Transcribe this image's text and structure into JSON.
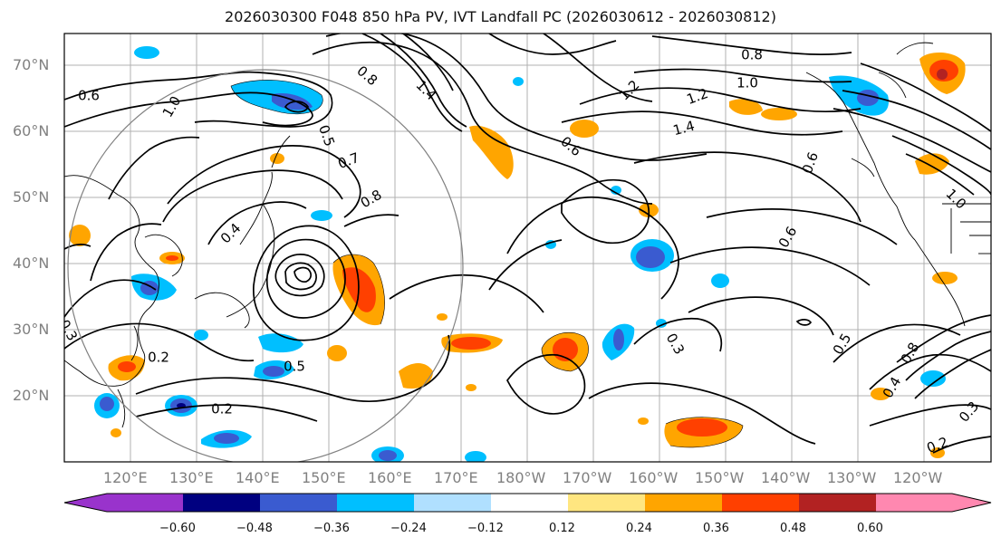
{
  "title": "2026030300 F048 850 hPa PV, IVT Landfall PC (2026030612 - 2026030812)",
  "latitude_labels": [
    "70°N",
    "60°N",
    "50°N",
    "40°N",
    "30°N",
    "20°N"
  ],
  "longitude_labels": [
    "120°E",
    "130°E",
    "140°E",
    "150°E",
    "160°E",
    "170°E",
    "180°W",
    "170°W",
    "160°W",
    "150°W",
    "140°W",
    "130°W",
    "120°W"
  ],
  "colorbar": {
    "ticks": [
      "−0.60",
      "−0.48",
      "−0.36",
      "−0.24",
      "−0.12",
      "0.12",
      "0.24",
      "0.36",
      "0.48",
      "0.60"
    ],
    "colors": [
      "#9933cc",
      "#000080",
      "#3a5bd0",
      "#00bfff",
      "#b0e0ff",
      "#ffffff",
      "#ffe680",
      "#ffa500",
      "#ff4000",
      "#b22222",
      "#ff88b0"
    ]
  },
  "contour_labels": [
    "0.6",
    "1.0",
    "0.8",
    "1.4",
    "1.2",
    "0.8",
    "0.5",
    "0.7",
    "0.4",
    "0.6",
    "0.8",
    "1.0",
    "1.4",
    "0.6",
    "1.2",
    "0.3",
    "0.2",
    "0.2",
    "0.5",
    "0.6",
    "0.5",
    "0.3",
    "0.4",
    "0.2",
    "0.3",
    "0.8",
    "1.0"
  ]
}
